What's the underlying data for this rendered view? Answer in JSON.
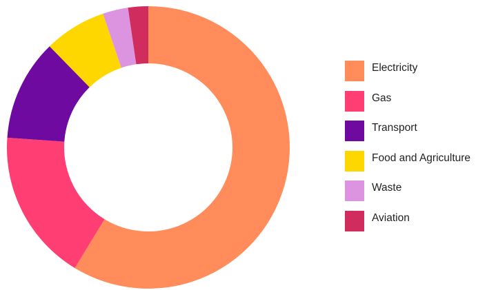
{
  "chart_data": {
    "type": "pie",
    "style": "donut",
    "legend_placement": "right",
    "categories": [
      "Electricity",
      "Gas",
      "Transport",
      "Food and Agriculture",
      "Waste",
      "Aviation"
    ],
    "values": [
      58.7,
      17.4,
      11.6,
      7.1,
      2.9,
      2.3
    ],
    "colors": [
      "#FF8C5A",
      "#FF3F73",
      "#6E0AA0",
      "#FFD700",
      "#DD94E0",
      "#D02C5E"
    ],
    "start": "top",
    "direction": "clockwise"
  }
}
